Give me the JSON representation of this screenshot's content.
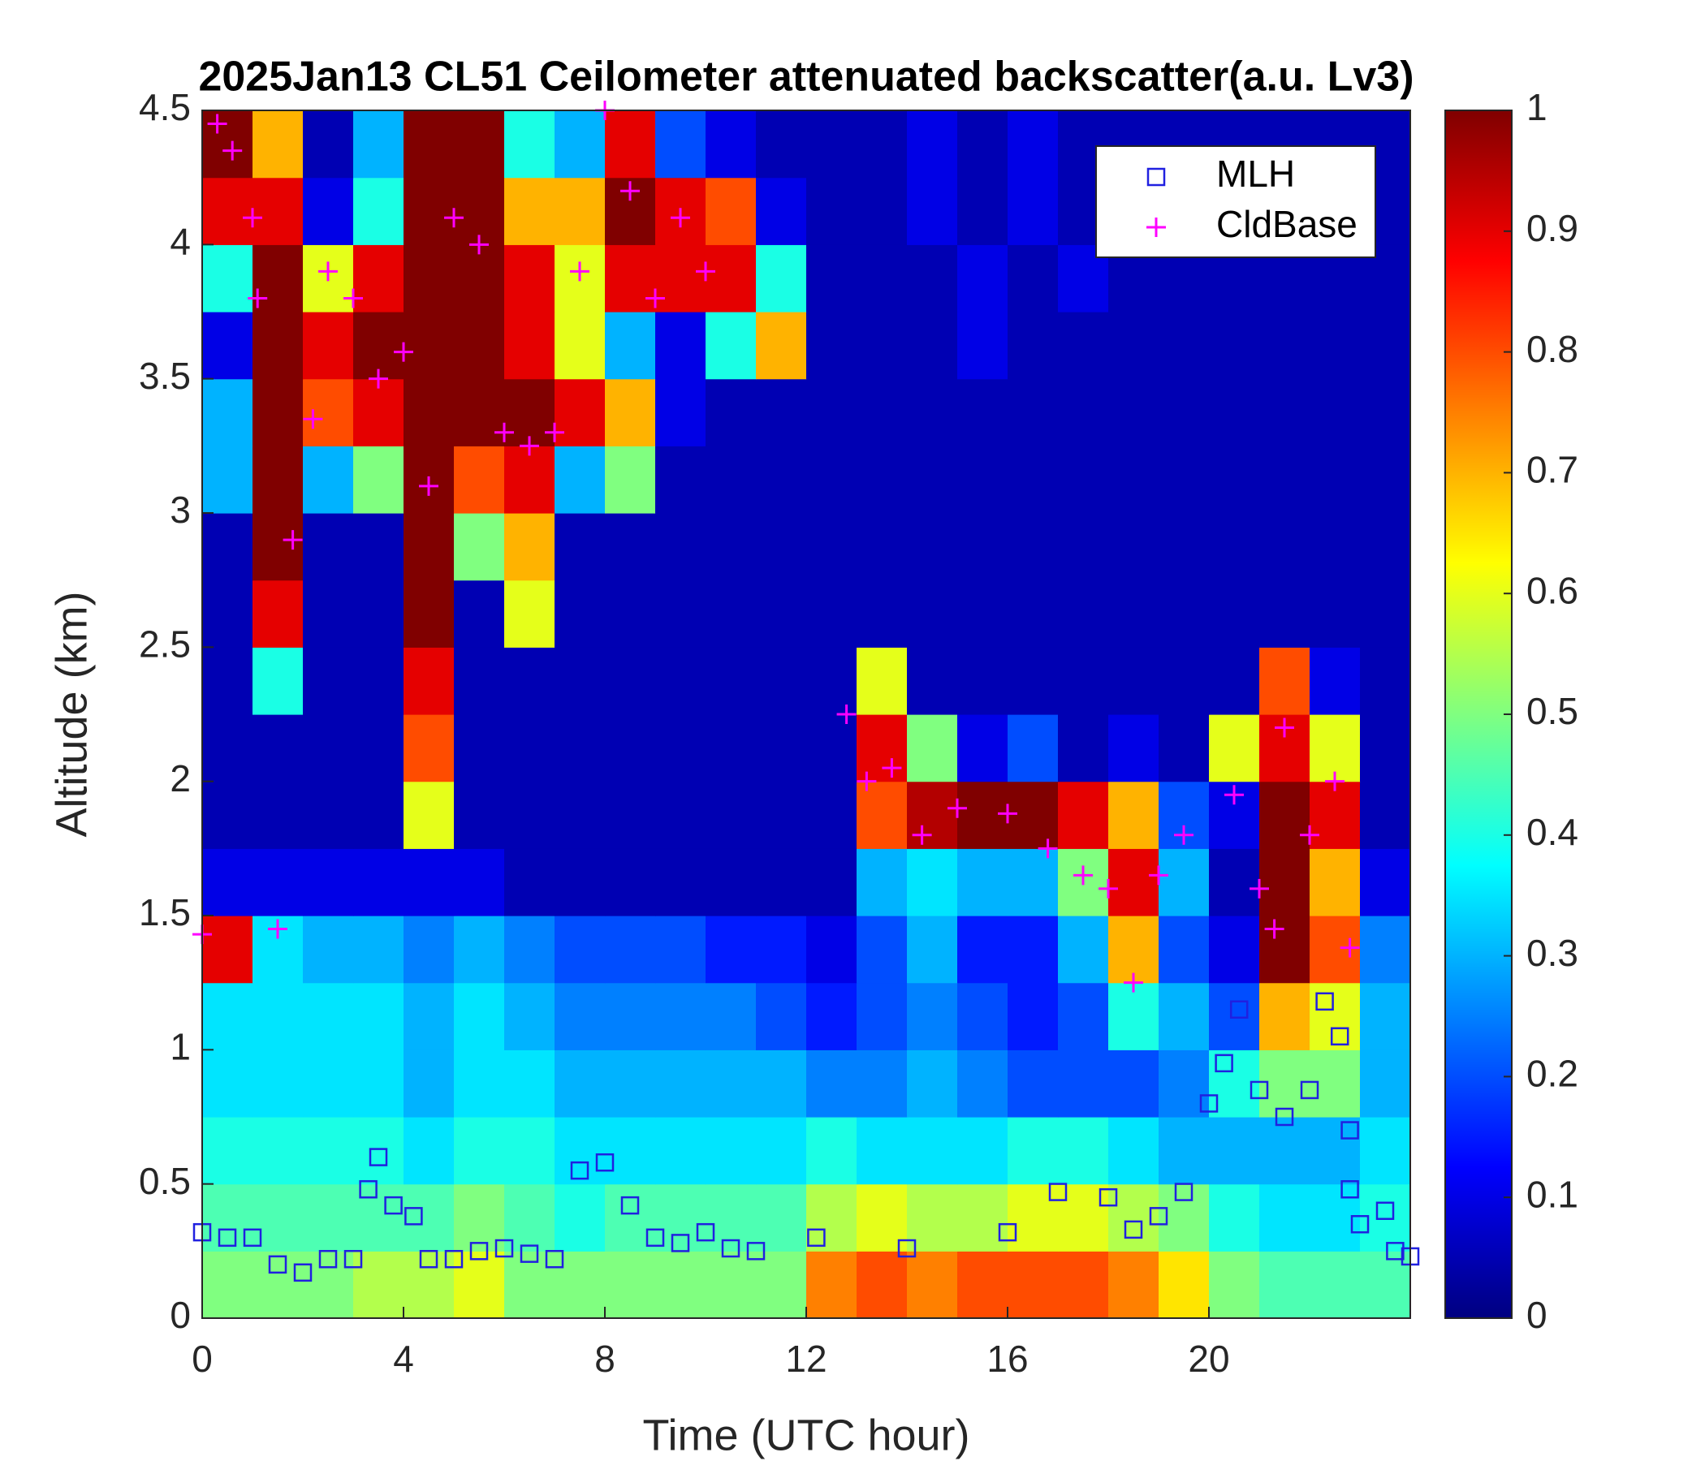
{
  "chart_data": {
    "type": "heatmap",
    "title": "2025Jan13 CL51 Ceilometer attenuated backscatter(a.u. Lv3)",
    "xlabel": "Time (UTC hour)",
    "ylabel": "Altitude (km)",
    "xlim": [
      0,
      24
    ],
    "ylim": [
      0,
      4.5
    ],
    "xticks": [
      0,
      4,
      8,
      12,
      16,
      20
    ],
    "yticks": [
      0,
      0.5,
      1,
      1.5,
      2,
      2.5,
      3,
      3.5,
      4,
      4.5
    ],
    "clim": [
      0,
      1
    ],
    "cticks": [
      0,
      0.1,
      0.2,
      0.3,
      0.4,
      0.5,
      0.6,
      0.7,
      0.8,
      0.9,
      1
    ],
    "colormap": "jet",
    "legend": "upper right",
    "xbins": [
      0,
      1,
      2,
      3,
      4,
      5,
      6,
      7,
      8,
      9,
      10,
      11,
      12,
      13,
      14,
      15,
      16,
      17,
      18,
      19,
      20,
      21,
      22,
      23,
      24
    ],
    "ybins": [
      0,
      0.25,
      0.5,
      0.75,
      1,
      1.25,
      1.5,
      1.75,
      2,
      2.25,
      2.5,
      2.75,
      3,
      3.25,
      3.5,
      3.75,
      4,
      4.25,
      4.5
    ],
    "z": [
      [
        0.5,
        0.5,
        0.5,
        0.55,
        0.55,
        0.6,
        0.5,
        0.5,
        0.5,
        0.5,
        0.5,
        0.5,
        0.75,
        0.8,
        0.75,
        0.8,
        0.8,
        0.8,
        0.75,
        0.65,
        0.5,
        0.45,
        0.45,
        0.45
      ],
      [
        0.45,
        0.45,
        0.45,
        0.45,
        0.45,
        0.5,
        0.45,
        0.4,
        0.45,
        0.45,
        0.45,
        0.45,
        0.55,
        0.6,
        0.55,
        0.55,
        0.6,
        0.6,
        0.55,
        0.5,
        0.4,
        0.35,
        0.35,
        0.4
      ],
      [
        0.4,
        0.4,
        0.4,
        0.4,
        0.35,
        0.4,
        0.4,
        0.35,
        0.35,
        0.35,
        0.35,
        0.35,
        0.4,
        0.35,
        0.35,
        0.35,
        0.4,
        0.4,
        0.35,
        0.3,
        0.3,
        0.3,
        0.3,
        0.35
      ],
      [
        0.35,
        0.35,
        0.35,
        0.35,
        0.3,
        0.35,
        0.35,
        0.3,
        0.3,
        0.3,
        0.3,
        0.3,
        0.25,
        0.25,
        0.3,
        0.25,
        0.2,
        0.2,
        0.2,
        0.25,
        0.4,
        0.5,
        0.5,
        0.3
      ],
      [
        0.35,
        0.35,
        0.35,
        0.35,
        0.3,
        0.35,
        0.3,
        0.25,
        0.25,
        0.25,
        0.25,
        0.2,
        0.15,
        0.2,
        0.25,
        0.2,
        0.15,
        0.2,
        0.4,
        0.3,
        0.2,
        0.7,
        0.6,
        0.3
      ],
      [
        0.9,
        0.35,
        0.3,
        0.3,
        0.25,
        0.3,
        0.25,
        0.2,
        0.2,
        0.2,
        0.15,
        0.15,
        0.1,
        0.2,
        0.3,
        0.15,
        0.15,
        0.3,
        0.7,
        0.2,
        0.1,
        1,
        0.8,
        0.25
      ],
      [
        0.1,
        0.1,
        0.1,
        0.1,
        0.1,
        0.1,
        0.05,
        0.05,
        0.05,
        0.05,
        0.05,
        0.05,
        0.05,
        0.3,
        0.35,
        0.3,
        0.3,
        0.5,
        0.9,
        0.3,
        0.05,
        1,
        0.7,
        0.1
      ],
      [
        0.05,
        0.05,
        0.05,
        0.05,
        0.6,
        0.05,
        0.05,
        0.05,
        0.05,
        0.05,
        0.05,
        0.05,
        0.05,
        0.8,
        0.95,
        1,
        1,
        0.9,
        0.7,
        0.2,
        0.1,
        1,
        0.9,
        0.05
      ],
      [
        0.05,
        0.05,
        0.05,
        0.05,
        0.8,
        0.05,
        0.05,
        0.05,
        0.05,
        0.05,
        0.05,
        0.05,
        0.05,
        0.9,
        0.5,
        0.1,
        0.2,
        0.05,
        0.1,
        0.05,
        0.6,
        0.9,
        0.6,
        0.05
      ],
      [
        0.05,
        0.4,
        0.05,
        0.05,
        0.9,
        0.05,
        0.05,
        0.05,
        0.05,
        0.05,
        0.05,
        0.05,
        0.05,
        0.6,
        0.05,
        0.05,
        0.05,
        0.05,
        0.05,
        0.05,
        0.05,
        0.8,
        0.1,
        0.05
      ],
      [
        0.05,
        0.9,
        0.05,
        0.05,
        1,
        0.05,
        0.6,
        0.05,
        0.05,
        0.05,
        0.05,
        0.05,
        0.05,
        0.05,
        0.05,
        0.05,
        0.05,
        0.05,
        0.05,
        0.05,
        0.05,
        0.05,
        0.05,
        0.05
      ],
      [
        0.05,
        1,
        0.05,
        0.05,
        1,
        0.5,
        0.7,
        0.05,
        0.05,
        0.05,
        0.05,
        0.05,
        0.05,
        0.05,
        0.05,
        0.05,
        0.05,
        0.05,
        0.05,
        0.05,
        0.05,
        0.05,
        0.05,
        0.05
      ],
      [
        0.3,
        1,
        0.3,
        0.5,
        1,
        0.8,
        0.9,
        0.3,
        0.5,
        0.05,
        0.05,
        0.05,
        0.05,
        0.05,
        0.05,
        0.05,
        0.05,
        0.05,
        0.05,
        0.05,
        0.05,
        0.05,
        0.05,
        0.05
      ],
      [
        0.3,
        1,
        0.8,
        0.9,
        1,
        1,
        1,
        0.9,
        0.7,
        0.1,
        0.05,
        0.05,
        0.05,
        0.05,
        0.05,
        0.05,
        0.05,
        0.05,
        0.05,
        0.05,
        0.05,
        0.05,
        0.05,
        0.05
      ],
      [
        0.1,
        1,
        0.9,
        1,
        1,
        1,
        0.9,
        0.6,
        0.3,
        0.1,
        0.4,
        0.7,
        0.05,
        0.05,
        0.05,
        0.1,
        0.05,
        0.05,
        0.05,
        0.05,
        0.05,
        0.05,
        0.05,
        0.05
      ],
      [
        0.4,
        1,
        0.6,
        0.9,
        1,
        1,
        0.9,
        0.6,
        0.9,
        0.9,
        0.9,
        0.4,
        0.05,
        0.05,
        0.05,
        0.1,
        0.05,
        0.1,
        0.05,
        0.05,
        0.05,
        0.05,
        0.05,
        0.05
      ],
      [
        0.9,
        0.9,
        0.1,
        0.4,
        1,
        1,
        0.7,
        0.7,
        1,
        0.9,
        0.8,
        0.1,
        0.05,
        0.05,
        0.1,
        0.05,
        0.1,
        0.05,
        0.05,
        0.05,
        0.05,
        0.05,
        0.05,
        0.05
      ],
      [
        1,
        0.7,
        0.05,
        0.3,
        1,
        1,
        0.4,
        0.3,
        0.9,
        0.2,
        0.1,
        0.05,
        0.05,
        0.05,
        0.1,
        0.05,
        0.1,
        0.05,
        0.05,
        0.05,
        0.05,
        0.05,
        0.05,
        0.05
      ]
    ],
    "series": [
      {
        "name": "MLH",
        "color": "#2020e0",
        "marker": "square",
        "x": [
          0,
          0.5,
          1,
          1.5,
          2,
          2.5,
          3,
          3.3,
          3.5,
          3.8,
          4.2,
          4.5,
          5,
          5.5,
          6,
          6.5,
          7,
          7.5,
          8,
          8.5,
          9,
          9.5,
          10,
          10.5,
          11,
          12.2,
          14,
          16,
          17,
          18,
          18.5,
          19,
          19.5,
          20,
          20.3,
          20.6,
          21,
          21.5,
          22,
          22.3,
          22.6,
          22.8,
          22.8,
          23,
          23.5,
          23.7,
          24
        ],
        "values": [
          0.32,
          0.3,
          0.3,
          0.2,
          0.17,
          0.22,
          0.22,
          0.48,
          0.6,
          0.42,
          0.38,
          0.22,
          0.22,
          0.25,
          0.26,
          0.24,
          0.22,
          0.55,
          0.58,
          0.42,
          0.3,
          0.28,
          0.32,
          0.26,
          0.25,
          0.3,
          0.26,
          0.32,
          0.47,
          0.45,
          0.33,
          0.38,
          0.47,
          0.8,
          0.95,
          1.15,
          0.85,
          0.75,
          0.85,
          1.18,
          1.05,
          0.7,
          0.48,
          0.35,
          0.4,
          0.25,
          0.23
        ]
      },
      {
        "name": "CldBase",
        "color": "#ff00ff",
        "marker": "plus",
        "x": [
          0,
          0.3,
          0.6,
          1,
          1.1,
          1.5,
          1.8,
          2.2,
          2.5,
          3,
          3.5,
          4,
          4.5,
          5,
          5.5,
          6,
          6.5,
          7,
          7.5,
          8,
          8.5,
          9,
          9.5,
          10,
          12.8,
          13.2,
          13.7,
          14.3,
          15,
          16,
          16.8,
          17.5,
          18,
          18.5,
          19,
          19.5,
          20.5,
          21,
          21.3,
          21.5,
          22,
          22.5,
          22.8
        ],
        "values": [
          1.43,
          4.45,
          4.35,
          4.1,
          3.8,
          1.45,
          2.9,
          3.35,
          3.9,
          3.8,
          3.5,
          3.6,
          3.1,
          4.1,
          4,
          3.3,
          3.25,
          3.3,
          3.9,
          4.5,
          4.2,
          3.8,
          4.1,
          3.9,
          2.25,
          2,
          2.05,
          1.8,
          1.9,
          1.88,
          1.75,
          1.65,
          1.6,
          1.25,
          1.65,
          1.8,
          1.95,
          1.6,
          1.45,
          2.2,
          1.8,
          2,
          1.38
        ]
      }
    ]
  }
}
